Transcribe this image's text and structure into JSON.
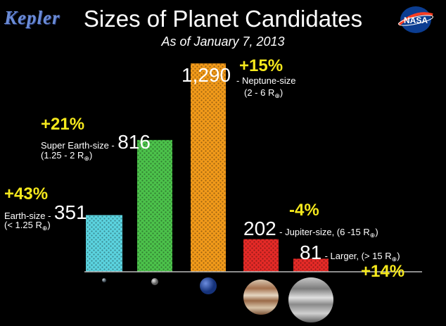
{
  "header": {
    "logo_text": "Kepler",
    "nasa_text": "NASA",
    "title": "Sizes of Planet Candidates",
    "subtitle": "As of January 7, 2013"
  },
  "chart_data": {
    "type": "bar",
    "title": "Sizes of Planet Candidates",
    "subtitle": "As of January 7, 2013",
    "xlabel": "",
    "ylabel": "",
    "grid": false,
    "categories": [
      "Earth-size",
      "Super Earth-size",
      "Neptune-size",
      "Jupiter-size",
      "Larger"
    ],
    "values": [
      351,
      816,
      1290,
      202,
      81
    ],
    "value_labels": [
      "351",
      "816",
      "1,290",
      "202",
      "81"
    ],
    "changes": [
      "+43%",
      "+21%",
      "+15%",
      "-4%",
      "+14%"
    ],
    "colors": [
      "#5bd3df",
      "#4cc24b",
      "#f29a1a",
      "#e52a27",
      "#e52a27"
    ],
    "size_ranges": [
      {
        "main": "(< 1.25 R",
        "sub": "⊕",
        "end": ")"
      },
      {
        "main": "(1.25 - 2 R",
        "sub": "⊕",
        "end": ")"
      },
      {
        "main": "(2 - 6 R",
        "sub": "⊕",
        "end": ")"
      },
      {
        "main": "(6 -15 R",
        "sub": "⊕",
        "end": ")"
      },
      {
        "main": "(> 15 R",
        "sub": "⊕",
        "end": ")"
      }
    ]
  },
  "annotations": {
    "earth_pct": "+43%",
    "earth_label": "Earth-size -",
    "earth_count": "351",
    "earth_range": "(< 1.25 R",
    "super_pct": "+21%",
    "super_label": "Super Earth-size -",
    "super_count": "816",
    "super_range": "(1.25 - 2 R",
    "neptune_count": "1,290",
    "neptune_pct": "+15%",
    "neptune_label": "- Neptune-size",
    "neptune_range": "(2 - 6 R",
    "jupiter_pct": "-4%",
    "jupiter_count": "202",
    "jupiter_label": "- Jupiter-size, (6 -15 R",
    "larger_count": "81",
    "larger_label": "- Larger, (> 15 R",
    "larger_pct": "+14%",
    "earth_sym": "⊕",
    "close_paren": ")"
  }
}
